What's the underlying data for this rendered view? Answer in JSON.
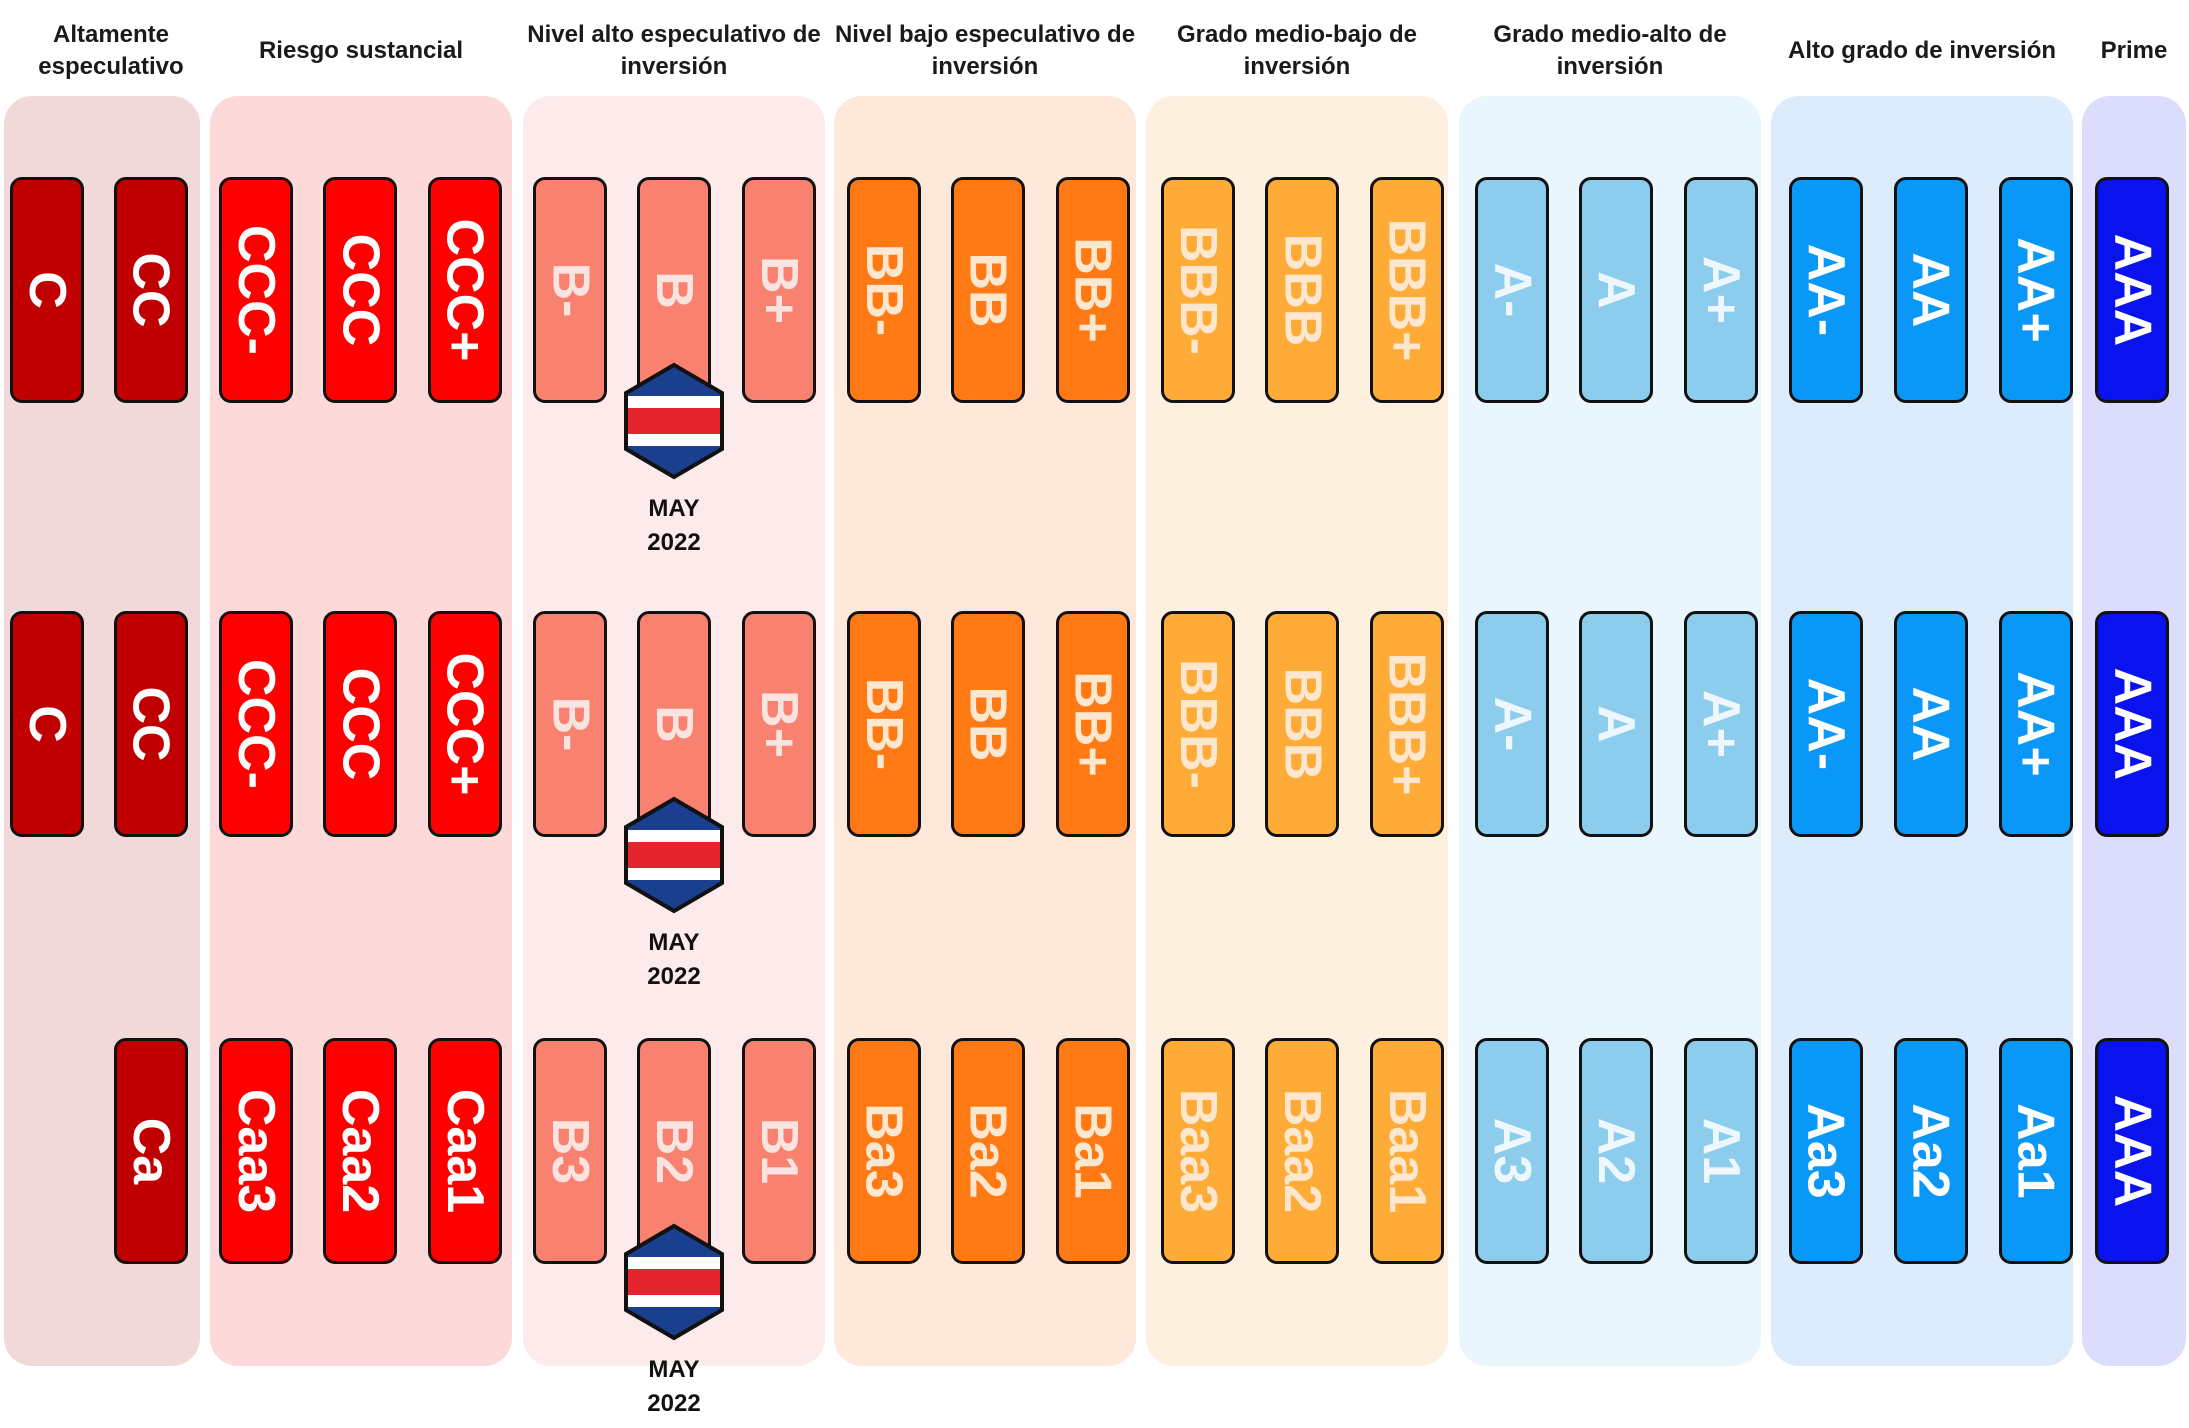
{
  "categories": [
    {
      "title": "Altamente especulativo",
      "bg": "#f2d9d9"
    },
    {
      "title": "Riesgo sustancial",
      "bg": "#fdd9d9"
    },
    {
      "title": "Nivel alto especulativo de inversión",
      "bg": "#fdeaea"
    },
    {
      "title": "Nivel bajo especulativo de inversión",
      "bg": "#fde8da"
    },
    {
      "title": "Grado medio-bajo de inversión",
      "bg": "#fdf0df"
    },
    {
      "title": "Grado medio-alto de inversión",
      "bg": "#eaf6fd"
    },
    {
      "title": "Alto grado de inversión",
      "bg": "#dcecfc"
    },
    {
      "title": "Prime",
      "bg": "#dcdcfc"
    }
  ],
  "rows": [
    {
      "ratings": [
        "C",
        "CC",
        "CCC-",
        "CCC",
        "CCC+",
        "B-",
        "B",
        "B+",
        "BB-",
        "BB",
        "BB+",
        "BBB-",
        "BBB",
        "BBB+",
        "A-",
        "A",
        "A+",
        "AA-",
        "AA",
        "AA+",
        "AAA"
      ],
      "marker": {
        "rating": "B",
        "label": "MAY\n2022"
      }
    },
    {
      "ratings": [
        "C",
        "CC",
        "CCC-",
        "CCC",
        "CCC+",
        "B-",
        "B",
        "B+",
        "BB-",
        "BB",
        "BB+",
        "BBB-",
        "BBB",
        "BBB+",
        "A-",
        "A",
        "A+",
        "AA-",
        "AA",
        "AA+",
        "AAA"
      ],
      "marker": {
        "rating": "B",
        "label": "MAY\n2022"
      }
    },
    {
      "ratings": [
        "",
        "Ca",
        "Caa3",
        "Caa2",
        "Caa1",
        "B3",
        "B2",
        "B1",
        "Ba3",
        "Ba2",
        "Ba1",
        "Baa3",
        "Baa2",
        "Baa1",
        "A3",
        "A2",
        "A1",
        "Aa3",
        "Aa2",
        "Aa1",
        "AAA"
      ],
      "marker": {
        "rating": "B2",
        "label": "MAY\n2022"
      }
    }
  ],
  "colors": {
    "dark_red": "#c00000",
    "red": "#ff0000",
    "salmon": "#f8826f",
    "orange": "#ff7a14",
    "light_orange": "#ffab38",
    "sky": "#8ccdee",
    "blue": "#0a98f8",
    "navy": "#0a12ee",
    "flag_blue": "#1b3f8f",
    "flag_red": "#e5252e"
  }
}
